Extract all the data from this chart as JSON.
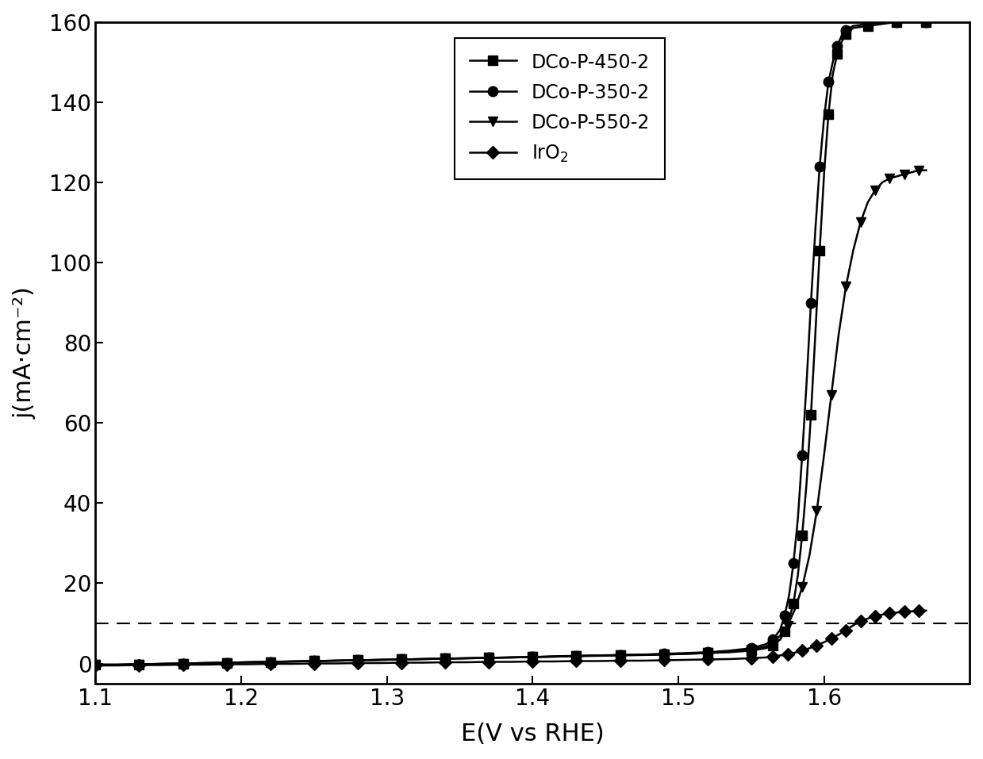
{
  "xlabel": "E(V vs RHE)",
  "ylabel": "j(mA·cm⁻²)",
  "xlim": [
    1.1,
    1.7
  ],
  "ylim": [
    -5,
    160
  ],
  "yticks": [
    0,
    20,
    40,
    60,
    80,
    100,
    120,
    140,
    160
  ],
  "xticks": [
    1.1,
    1.2,
    1.3,
    1.4,
    1.5,
    1.6
  ],
  "dashed_line_y": 10,
  "bg_color": "#ffffff",
  "line_color": "#000000",
  "linewidth": 1.8,
  "marker_size_sq": 8,
  "marker_size_ci": 9,
  "marker_size_tr": 9,
  "marker_size_di": 8,
  "series": [
    {
      "label": "DCo-P-450-2",
      "marker": "s",
      "x": [
        1.1,
        1.115,
        1.13,
        1.145,
        1.16,
        1.175,
        1.19,
        1.205,
        1.22,
        1.235,
        1.25,
        1.265,
        1.28,
        1.295,
        1.31,
        1.325,
        1.34,
        1.355,
        1.37,
        1.385,
        1.4,
        1.415,
        1.43,
        1.445,
        1.46,
        1.475,
        1.49,
        1.505,
        1.52,
        1.535,
        1.55,
        1.56,
        1.565,
        1.57,
        1.573,
        1.576,
        1.579,
        1.582,
        1.585,
        1.588,
        1.591,
        1.594,
        1.597,
        1.6,
        1.603,
        1.606,
        1.609,
        1.612,
        1.615,
        1.62,
        1.63,
        1.64,
        1.65,
        1.66,
        1.67
      ],
      "y": [
        -0.3,
        -0.3,
        -0.2,
        -0.1,
        0.0,
        0.1,
        0.2,
        0.3,
        0.4,
        0.5,
        0.6,
        0.7,
        0.8,
        0.9,
        1.0,
        1.1,
        1.2,
        1.3,
        1.4,
        1.5,
        1.6,
        1.7,
        1.9,
        2.0,
        2.1,
        2.2,
        2.3,
        2.4,
        2.6,
        2.8,
        3.2,
        3.8,
        4.5,
        6.0,
        8.0,
        11.0,
        15.0,
        22.0,
        32.0,
        45.0,
        62.0,
        82.0,
        103.0,
        122.0,
        137.0,
        147.0,
        152.0,
        155.0,
        157.0,
        158.5,
        159.0,
        159.5,
        160.0,
        160.0,
        160.0
      ]
    },
    {
      "label": "DCo-P-350-2",
      "marker": "o",
      "x": [
        1.1,
        1.115,
        1.13,
        1.145,
        1.16,
        1.175,
        1.19,
        1.205,
        1.22,
        1.235,
        1.25,
        1.265,
        1.28,
        1.295,
        1.31,
        1.325,
        1.34,
        1.355,
        1.37,
        1.385,
        1.4,
        1.415,
        1.43,
        1.445,
        1.46,
        1.475,
        1.49,
        1.505,
        1.52,
        1.535,
        1.55,
        1.56,
        1.565,
        1.57,
        1.573,
        1.576,
        1.579,
        1.582,
        1.585,
        1.588,
        1.591,
        1.594,
        1.597,
        1.6,
        1.603,
        1.606,
        1.609,
        1.612,
        1.615,
        1.62,
        1.63,
        1.64,
        1.65,
        1.66,
        1.67
      ],
      "y": [
        -0.3,
        -0.3,
        -0.2,
        -0.1,
        0.0,
        0.1,
        0.2,
        0.3,
        0.4,
        0.5,
        0.6,
        0.7,
        0.8,
        0.9,
        1.0,
        1.1,
        1.2,
        1.3,
        1.4,
        1.5,
        1.6,
        1.8,
        1.9,
        2.0,
        2.1,
        2.2,
        2.4,
        2.6,
        2.8,
        3.2,
        3.8,
        4.8,
        6.0,
        8.5,
        12.0,
        17.0,
        25.0,
        36.0,
        52.0,
        70.0,
        90.0,
        108.0,
        124.0,
        136.0,
        145.0,
        150.0,
        154.0,
        156.5,
        158.0,
        159.0,
        159.5,
        160.0,
        160.0,
        160.0,
        160.0
      ]
    },
    {
      "label": "DCo-P-550-2",
      "marker": "v",
      "x": [
        1.1,
        1.115,
        1.13,
        1.145,
        1.16,
        1.175,
        1.19,
        1.205,
        1.22,
        1.235,
        1.25,
        1.265,
        1.28,
        1.295,
        1.31,
        1.325,
        1.34,
        1.355,
        1.37,
        1.385,
        1.4,
        1.415,
        1.43,
        1.445,
        1.46,
        1.475,
        1.49,
        1.505,
        1.52,
        1.535,
        1.55,
        1.56,
        1.565,
        1.57,
        1.575,
        1.58,
        1.585,
        1.59,
        1.595,
        1.6,
        1.605,
        1.61,
        1.615,
        1.62,
        1.625,
        1.63,
        1.635,
        1.64,
        1.645,
        1.65,
        1.655,
        1.66,
        1.665,
        1.67
      ],
      "y": [
        -0.3,
        -0.3,
        -0.2,
        -0.1,
        0.0,
        0.1,
        0.2,
        0.3,
        0.4,
        0.5,
        0.6,
        0.7,
        0.8,
        0.9,
        1.0,
        1.1,
        1.2,
        1.3,
        1.4,
        1.5,
        1.6,
        1.7,
        1.8,
        1.9,
        2.0,
        2.1,
        2.2,
        2.4,
        2.6,
        2.9,
        3.5,
        4.2,
        5.2,
        7.0,
        9.5,
        13.5,
        19.0,
        27.0,
        38.0,
        52.0,
        67.0,
        82.0,
        94.0,
        103.0,
        110.0,
        115.0,
        118.0,
        120.0,
        121.0,
        121.5,
        122.0,
        122.5,
        123.0,
        123.0
      ]
    },
    {
      "label": "IrO$_2$",
      "marker": "D",
      "x": [
        1.1,
        1.115,
        1.13,
        1.145,
        1.16,
        1.175,
        1.19,
        1.205,
        1.22,
        1.235,
        1.25,
        1.265,
        1.28,
        1.295,
        1.31,
        1.325,
        1.34,
        1.355,
        1.37,
        1.385,
        1.4,
        1.415,
        1.43,
        1.445,
        1.46,
        1.475,
        1.49,
        1.505,
        1.52,
        1.535,
        1.55,
        1.56,
        1.565,
        1.57,
        1.575,
        1.58,
        1.585,
        1.59,
        1.595,
        1.6,
        1.605,
        1.61,
        1.615,
        1.62,
        1.625,
        1.63,
        1.635,
        1.64,
        1.645,
        1.65,
        1.655,
        1.66,
        1.665,
        1.67
      ],
      "y": [
        -0.5,
        -0.5,
        -0.4,
        -0.4,
        -0.3,
        -0.3,
        -0.2,
        -0.2,
        -0.1,
        -0.1,
        0.0,
        0.0,
        0.1,
        0.1,
        0.2,
        0.2,
        0.3,
        0.3,
        0.4,
        0.4,
        0.5,
        0.5,
        0.6,
        0.6,
        0.7,
        0.7,
        0.8,
        0.9,
        1.0,
        1.1,
        1.3,
        1.5,
        1.7,
        2.0,
        2.3,
        2.7,
        3.2,
        3.8,
        4.5,
        5.3,
        6.2,
        7.2,
        8.3,
        9.5,
        10.5,
        11.2,
        11.8,
        12.2,
        12.5,
        12.7,
        12.9,
        13.0,
        13.1,
        13.2
      ]
    }
  ]
}
